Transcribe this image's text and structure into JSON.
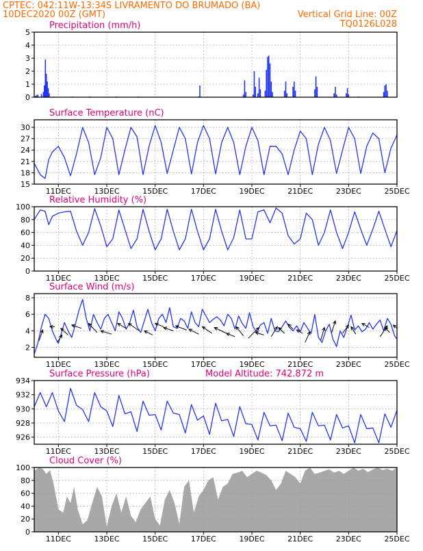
{
  "header": {
    "line1": "CPTEC:   042:11W-13:34S  LIVRAMENTO DO BRUMADO (BA)",
    "line2_left": "10DEC2020 00Z (GMT)",
    "line2_right": "Vertical Grid Line: 00Z",
    "line3_right": "TQ0126L028"
  },
  "colors": {
    "header": "#ff6a00",
    "title": "#e0007a",
    "series": "#2233ee",
    "cloud": "#a8a8a8",
    "grid": "#9a9a9a"
  },
  "x_axis": {
    "range": [
      0,
      15
    ],
    "ticks": [
      {
        "x": 1,
        "label": "11DEC"
      },
      {
        "x": 3,
        "label": "13DEC"
      },
      {
        "x": 5,
        "label": "15DEC"
      },
      {
        "x": 7,
        "label": "17DEC"
      },
      {
        "x": 9,
        "label": "19DEC"
      },
      {
        "x": 11,
        "label": "21DEC"
      },
      {
        "x": 13,
        "label": "23DEC"
      },
      {
        "x": 15,
        "label": "25DEC"
      }
    ]
  },
  "chart_data": [
    {
      "id": "precip",
      "type": "bar",
      "title": "Precipitation (mm/h)",
      "ylim": [
        0,
        5
      ],
      "yticks": [
        0,
        1,
        2,
        3,
        4,
        5
      ],
      "grid": true,
      "bars": [
        [
          0.05,
          0.1
        ],
        [
          0.1,
          0.15
        ],
        [
          0.15,
          0.2
        ],
        [
          0.3,
          0.25
        ],
        [
          0.38,
          0.4
        ],
        [
          0.42,
          0.9
        ],
        [
          0.46,
          2.9
        ],
        [
          0.5,
          1.8
        ],
        [
          0.54,
          1.2
        ],
        [
          0.58,
          0.7
        ],
        [
          0.62,
          0.3
        ],
        [
          1.6,
          0.05
        ],
        [
          2.3,
          0.05
        ],
        [
          3.4,
          0.05
        ],
        [
          4.3,
          0.05
        ],
        [
          6.8,
          0.05
        ],
        [
          6.85,
          0.9
        ],
        [
          8.65,
          0.2
        ],
        [
          8.7,
          1.3
        ],
        [
          8.75,
          0.4
        ],
        [
          9.05,
          0.2
        ],
        [
          9.1,
          2.0
        ],
        [
          9.15,
          0.8
        ],
        [
          9.25,
          0.3
        ],
        [
          9.3,
          1.5
        ],
        [
          9.35,
          0.6
        ],
        [
          9.55,
          0.5
        ],
        [
          9.6,
          2.1
        ],
        [
          9.65,
          3.1
        ],
        [
          9.7,
          3.2
        ],
        [
          9.75,
          2.6
        ],
        [
          9.8,
          1.2
        ],
        [
          9.85,
          0.4
        ],
        [
          10.35,
          0.5
        ],
        [
          10.4,
          1.2
        ],
        [
          10.45,
          0.3
        ],
        [
          10.7,
          0.8
        ],
        [
          10.75,
          1.2
        ],
        [
          10.8,
          0.5
        ],
        [
          11.6,
          0.6
        ],
        [
          11.65,
          1.6
        ],
        [
          11.7,
          0.8
        ],
        [
          12.4,
          0.3
        ],
        [
          12.45,
          0.8
        ],
        [
          12.5,
          0.2
        ],
        [
          12.9,
          0.3
        ],
        [
          12.95,
          0.7
        ],
        [
          13.0,
          0.2
        ],
        [
          13.4,
          0.05
        ],
        [
          14.45,
          0.4
        ],
        [
          14.5,
          0.9
        ],
        [
          14.55,
          1.0
        ],
        [
          14.6,
          0.5
        ]
      ]
    },
    {
      "id": "temp",
      "type": "line",
      "title": "Surface Temperature (nC)",
      "ylim": [
        15,
        32
      ],
      "yticks": [
        15,
        18,
        21,
        24,
        27,
        30
      ],
      "grid": true,
      "x": [
        0,
        0.25,
        0.45,
        0.6,
        0.75,
        1.0,
        1.25,
        1.5,
        1.75,
        2.0,
        2.25,
        2.5,
        2.75,
        3.0,
        3.25,
        3.5,
        3.75,
        4.0,
        4.25,
        4.5,
        4.75,
        5.0,
        5.25,
        5.5,
        5.75,
        6.0,
        6.25,
        6.5,
        6.75,
        7.0,
        7.25,
        7.5,
        7.75,
        8.0,
        8.25,
        8.5,
        8.75,
        9.0,
        9.25,
        9.5,
        9.75,
        10.0,
        10.25,
        10.5,
        10.75,
        11.0,
        11.25,
        11.5,
        11.75,
        12.0,
        12.25,
        12.5,
        12.75,
        13.0,
        13.25,
        13.5,
        13.75,
        14.0,
        14.25,
        14.5,
        14.75,
        15.0
      ],
      "values": [
        20.5,
        17.5,
        16.5,
        21.5,
        23.5,
        25,
        22,
        17.2,
        23,
        30,
        26,
        17.5,
        22,
        30,
        27,
        17.5,
        24,
        30,
        27.5,
        17.5,
        25,
        30.5,
        26,
        17.8,
        24,
        30,
        27,
        17.7,
        26,
        30.5,
        27,
        17.7,
        26,
        30,
        26,
        17.5,
        25,
        30,
        26.5,
        17.5,
        25,
        25,
        23,
        17.5,
        24,
        29,
        27,
        17.5,
        25.5,
        30,
        26.5,
        17.8,
        24,
        30,
        27,
        17.8,
        25,
        28.5,
        27,
        18,
        24.5,
        28
      ]
    },
    {
      "id": "rh",
      "type": "line",
      "title": "Relative Humidity (%)",
      "ylim": [
        0,
        100
      ],
      "yticks": [
        0,
        20,
        40,
        60,
        80,
        100
      ],
      "grid": true,
      "x": [
        0,
        0.25,
        0.45,
        0.6,
        0.75,
        1.0,
        1.25,
        1.5,
        1.75,
        2.0,
        2.25,
        2.5,
        2.75,
        3.0,
        3.25,
        3.5,
        3.75,
        4.0,
        4.25,
        4.5,
        4.75,
        5.0,
        5.25,
        5.5,
        5.75,
        6.0,
        6.25,
        6.5,
        6.75,
        7.0,
        7.25,
        7.5,
        7.75,
        8.0,
        8.25,
        8.5,
        8.75,
        9.0,
        9.25,
        9.5,
        9.75,
        10.0,
        10.25,
        10.5,
        10.75,
        11.0,
        11.25,
        11.5,
        11.75,
        12.0,
        12.25,
        12.5,
        12.75,
        13.0,
        13.25,
        13.5,
        13.75,
        14.0,
        14.25,
        14.5,
        14.75,
        15.0
      ],
      "values": [
        80,
        95,
        93,
        72,
        85,
        90,
        92,
        93,
        62,
        40,
        60,
        97,
        70,
        38,
        50,
        95,
        65,
        35,
        50,
        96,
        62,
        33,
        50,
        96,
        62,
        33,
        50,
        96,
        62,
        33,
        50,
        96,
        62,
        33,
        52,
        95,
        50,
        50,
        92,
        95,
        75,
        98,
        90,
        55,
        42,
        50,
        90,
        80,
        40,
        60,
        95,
        60,
        35,
        60,
        92,
        65,
        40,
        65,
        93,
        65,
        38,
        63
      ]
    },
    {
      "id": "wind",
      "type": "line",
      "title": "Surface Wind (m/s)",
      "ylim": [
        0.8,
        8.5
      ],
      "yticks": [
        2,
        4,
        6,
        8
      ],
      "grid": true,
      "x": [
        0,
        0.15,
        0.3,
        0.45,
        0.6,
        0.75,
        0.9,
        1.0,
        1.1,
        1.25,
        1.4,
        1.55,
        1.7,
        1.85,
        2.0,
        2.15,
        2.3,
        2.45,
        2.6,
        2.75,
        2.9,
        3.05,
        3.2,
        3.35,
        3.5,
        3.65,
        3.8,
        3.95,
        4.1,
        4.25,
        4.4,
        4.55,
        4.7,
        4.85,
        5.0,
        5.15,
        5.3,
        5.45,
        5.6,
        5.75,
        5.9,
        6.05,
        6.2,
        6.35,
        6.5,
        6.65,
        6.8,
        6.95,
        7.1,
        7.25,
        7.4,
        7.55,
        7.7,
        7.85,
        8.0,
        8.15,
        8.3,
        8.45,
        8.6,
        8.75,
        8.9,
        9.05,
        9.2,
        9.35,
        9.5,
        9.65,
        9.8,
        9.95,
        10.1,
        10.25,
        10.4,
        10.55,
        10.7,
        10.85,
        11.0,
        11.15,
        11.3,
        11.45,
        11.6,
        11.75,
        11.9,
        12.05,
        12.2,
        12.35,
        12.5,
        12.65,
        12.8,
        12.95,
        13.1,
        13.25,
        13.4,
        13.55,
        13.7,
        13.85,
        14.0,
        14.15,
        14.3,
        14.45,
        14.6,
        14.75,
        14.9,
        15.0
      ],
      "values": [
        1.2,
        2.5,
        4.5,
        6.0,
        5.5,
        4.0,
        3.0,
        2.5,
        3.5,
        5.0,
        4.0,
        3.2,
        4.8,
        6.5,
        7.8,
        5.5,
        4.0,
        6.0,
        5.0,
        4.2,
        5.5,
        6.0,
        5.0,
        4.0,
        6.3,
        5.5,
        4.2,
        5.0,
        6.5,
        4.5,
        3.8,
        5.2,
        6.6,
        5.0,
        4.0,
        5.5,
        6.0,
        5.0,
        6.8,
        4.5,
        4.3,
        5.5,
        5.2,
        4.3,
        6.3,
        5.0,
        4.5,
        6.6,
        5.8,
        5.0,
        5.4,
        5.7,
        5.3,
        4.6,
        6.0,
        5.5,
        4.2,
        5.8,
        4.9,
        4.3,
        6.2,
        4.5,
        3.8,
        4.7,
        5.0,
        3.7,
        5.5,
        4.0,
        3.9,
        4.5,
        5.2,
        4.4,
        4.0,
        4.6,
        3.9,
        5.0,
        4.3,
        3.7,
        6.0,
        3.2,
        2.6,
        4.0,
        4.8,
        3.0,
        2.1,
        4.0,
        3.2,
        4.5,
        5.9,
        4.1,
        4.6,
        3.9,
        4.2,
        5.0,
        4.2,
        4.8,
        5.3,
        4.0,
        5.5,
        4.8,
        3.4,
        3.0
      ],
      "arrows": [
        [
          0.2,
          2.8,
          0.35,
          4.1
        ],
        [
          0.85,
          4.5,
          0.65,
          4.5
        ],
        [
          0.95,
          2.6,
          1.15,
          3.5
        ],
        [
          1.4,
          3.5,
          1.1,
          4.3
        ],
        [
          1.95,
          4.3,
          1.55,
          4.7
        ],
        [
          2.6,
          3.8,
          2.25,
          4.9
        ],
        [
          3.2,
          3.6,
          2.75,
          4.0
        ],
        [
          3.8,
          4.3,
          3.45,
          4.9
        ],
        [
          4.35,
          4.0,
          3.9,
          4.9
        ],
        [
          4.9,
          3.5,
          4.55,
          4.0
        ],
        [
          5.35,
          4.5,
          5.0,
          4.9
        ],
        [
          5.75,
          4.0,
          5.35,
          4.4
        ],
        [
          6.3,
          4.1,
          5.85,
          4.6
        ],
        [
          6.8,
          3.6,
          6.4,
          4.2
        ],
        [
          7.35,
          3.7,
          6.95,
          4.5
        ],
        [
          7.95,
          3.7,
          7.45,
          4.4
        ],
        [
          8.3,
          3.3,
          7.95,
          3.7
        ],
        [
          8.65,
          3.4,
          8.35,
          4.5
        ],
        [
          8.85,
          3.1,
          9.3,
          4.4
        ],
        [
          9.5,
          3.5,
          9.15,
          3.8
        ],
        [
          9.8,
          3.3,
          10.05,
          4.5
        ],
        [
          10.35,
          3.7,
          10.1,
          4.4
        ],
        [
          10.7,
          4.2,
          10.5,
          4.8
        ],
        [
          11.1,
          3.7,
          10.85,
          4.1
        ],
        [
          11.2,
          2.6,
          11.4,
          3.9
        ],
        [
          11.85,
          2.9,
          12.0,
          4.4
        ],
        [
          12.3,
          3.8,
          12.45,
          5.2
        ],
        [
          12.75,
          3.7,
          13.0,
          4.7
        ],
        [
          13.3,
          3.6,
          13.1,
          4.5
        ],
        [
          13.85,
          4.4,
          13.55,
          4.9
        ],
        [
          14.3,
          3.3,
          14.6,
          4.6
        ],
        [
          14.7,
          3.8,
          14.5,
          4.4
        ],
        [
          15.0,
          4.3,
          14.85,
          4.7
        ]
      ]
    },
    {
      "id": "pressure",
      "type": "line",
      "title": "Surface Pressure (hPa)",
      "annotation": "Model Altitude: 742.872 m",
      "ylim": [
        925,
        934
      ],
      "yticks": [
        926,
        928,
        930,
        932,
        934
      ],
      "grid": true,
      "x": [
        0,
        0.25,
        0.5,
        0.75,
        1.0,
        1.25,
        1.5,
        1.75,
        2.0,
        2.25,
        2.5,
        2.75,
        3.0,
        3.25,
        3.5,
        3.75,
        4.0,
        4.25,
        4.5,
        4.75,
        5.0,
        5.25,
        5.5,
        5.75,
        6.0,
        6.25,
        6.5,
        6.75,
        7.0,
        7.25,
        7.5,
        7.75,
        8.0,
        8.25,
        8.5,
        8.75,
        9.0,
        9.25,
        9.5,
        9.75,
        10.0,
        10.25,
        10.5,
        10.75,
        11.0,
        11.25,
        11.5,
        11.75,
        12.0,
        12.25,
        12.5,
        12.75,
        13.0,
        13.25,
        13.5,
        13.75,
        14.0,
        14.25,
        14.5,
        14.75,
        15.0
      ],
      "values": [
        930.3,
        932.3,
        930.3,
        932.3,
        929.7,
        928.2,
        932.9,
        930.5,
        929.9,
        928.2,
        932.3,
        930.3,
        929.7,
        927.5,
        931.9,
        929.3,
        929.6,
        926.8,
        931.1,
        929.1,
        929.2,
        927,
        931.1,
        929.4,
        929.2,
        926.6,
        930.6,
        928.4,
        929,
        926.4,
        930.8,
        928.3,
        928.5,
        926.1,
        930.3,
        927.9,
        927.8,
        925.6,
        929.5,
        927.6,
        927.7,
        925.5,
        929.4,
        927.4,
        927.2,
        925.4,
        929.5,
        927.6,
        927.7,
        925.6,
        929.2,
        927.3,
        927.6,
        925.2,
        929.2,
        927.2,
        927.3,
        925.2,
        929.3,
        927.4,
        929.8
      ]
    },
    {
      "id": "cloud",
      "type": "area",
      "title": "Cloud Cover (%)",
      "ylim": [
        0,
        100
      ],
      "yticks": [
        0,
        20,
        40,
        60,
        80,
        100
      ],
      "grid": true,
      "x": [
        0,
        0.2,
        0.35,
        0.5,
        0.65,
        0.8,
        1.0,
        1.2,
        1.35,
        1.5,
        1.65,
        1.8,
        2.0,
        2.2,
        2.4,
        2.6,
        2.8,
        3.0,
        3.2,
        3.4,
        3.6,
        3.8,
        4.0,
        4.2,
        4.4,
        4.6,
        4.8,
        5.0,
        5.2,
        5.4,
        5.6,
        5.8,
        6.0,
        6.2,
        6.4,
        6.6,
        6.8,
        7.0,
        7.2,
        7.4,
        7.6,
        7.8,
        8.0,
        8.2,
        8.4,
        8.6,
        8.8,
        9.0,
        9.2,
        9.4,
        9.6,
        9.8,
        10.0,
        10.2,
        10.4,
        10.6,
        10.8,
        11.0,
        11.2,
        11.4,
        11.6,
        11.8,
        12.0,
        12.2,
        12.4,
        12.6,
        12.8,
        13.0,
        13.2,
        13.4,
        13.6,
        13.8,
        14.0,
        14.2,
        14.4,
        14.6,
        14.8,
        15.0
      ],
      "values": [
        95,
        100,
        98,
        90,
        96,
        75,
        35,
        30,
        55,
        45,
        70,
        35,
        12,
        18,
        45,
        70,
        55,
        8,
        40,
        60,
        30,
        55,
        25,
        15,
        35,
        45,
        55,
        20,
        10,
        50,
        65,
        45,
        12,
        70,
        80,
        30,
        55,
        65,
        80,
        85,
        50,
        70,
        75,
        90,
        92,
        95,
        85,
        90,
        95,
        92,
        88,
        80,
        65,
        75,
        95,
        90,
        85,
        75,
        95,
        100,
        90,
        92,
        95,
        97,
        92,
        95,
        90,
        95,
        100,
        95,
        98,
        93,
        97,
        100,
        96,
        98,
        95,
        100
      ]
    }
  ]
}
